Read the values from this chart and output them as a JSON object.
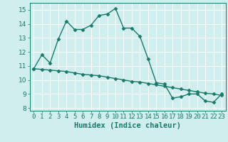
{
  "line1_x": [
    0,
    1,
    2,
    3,
    4,
    5,
    6,
    7,
    8,
    9,
    10,
    11,
    12,
    13,
    14,
    15,
    16,
    17,
    18,
    19,
    20,
    21,
    22,
    23
  ],
  "line1_y": [
    10.8,
    11.8,
    11.2,
    12.9,
    14.2,
    13.6,
    13.6,
    13.9,
    14.6,
    14.7,
    15.1,
    13.7,
    13.7,
    13.1,
    11.5,
    9.8,
    9.7,
    8.7,
    8.8,
    9.0,
    9.0,
    8.5,
    8.4,
    9.0
  ],
  "line2_x": [
    0,
    1,
    2,
    3,
    4,
    5,
    6,
    7,
    8,
    9,
    10,
    11,
    12,
    13,
    14,
    15,
    16,
    17,
    18,
    19,
    20,
    21,
    22,
    23
  ],
  "line2_y": [
    10.8,
    10.75,
    10.7,
    10.65,
    10.6,
    10.5,
    10.4,
    10.35,
    10.3,
    10.2,
    10.1,
    10.0,
    9.9,
    9.85,
    9.75,
    9.65,
    9.55,
    9.45,
    9.35,
    9.25,
    9.15,
    9.05,
    9.0,
    8.9
  ],
  "line_color": "#1a7a6a",
  "bg_color": "#d0eeee",
  "grid_color": "#ffffff",
  "xlabel": "Humidex (Indice chaleur)",
  "ylim": [
    7.8,
    15.5
  ],
  "xlim": [
    -0.5,
    23.5
  ],
  "yticks": [
    8,
    9,
    10,
    11,
    12,
    13,
    14,
    15
  ],
  "xticks": [
    0,
    1,
    2,
    3,
    4,
    5,
    6,
    7,
    8,
    9,
    10,
    11,
    12,
    13,
    14,
    15,
    16,
    17,
    18,
    19,
    20,
    21,
    22,
    23
  ],
  "marker": "D",
  "marker_size": 2.5,
  "line_width": 1.0,
  "xlabel_fontsize": 7.5,
  "tick_fontsize": 6.5
}
